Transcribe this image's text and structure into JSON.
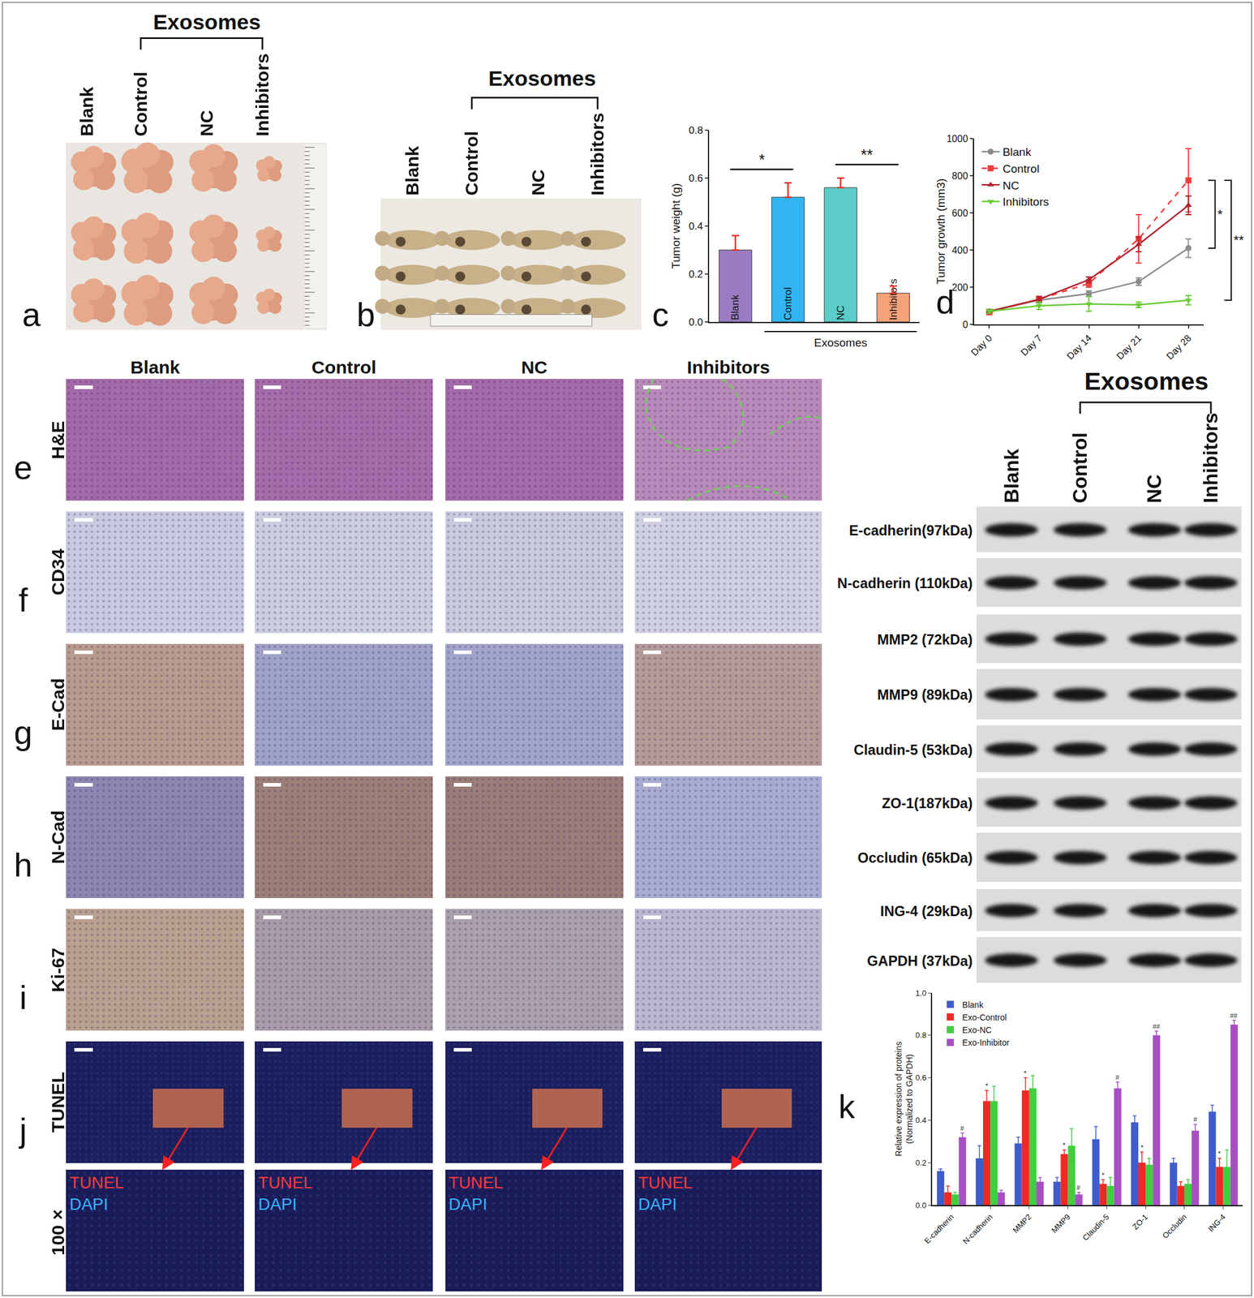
{
  "chart_data": [
    {
      "panel": "c",
      "type": "bar",
      "categories": [
        "Blank",
        "Control",
        "NC",
        "Inhibitors"
      ],
      "values": [
        0.3,
        0.52,
        0.56,
        0.12
      ],
      "errors": [
        0.06,
        0.06,
        0.04,
        0.03
      ],
      "colors": [
        "#9b7cc4",
        "#33b5f2",
        "#5ccdc9",
        "#f5a27a"
      ],
      "y_label": "Tumor weight (g)",
      "ylim": [
        0,
        0.8
      ],
      "yticks": [
        {
          "value": 0,
          "label": "0.0"
        },
        0.2,
        0.4,
        0.6,
        0.8
      ],
      "tick_labels": "y",
      "group": {
        "label": "Exosomes",
        "from": "Control",
        "to": "Inhibitors"
      },
      "significance": [
        {
          "from": "Blank",
          "to": "Control",
          "text": "*"
        },
        {
          "from": "NC",
          "to": "Inhibitors",
          "text": "**"
        }
      ]
    },
    {
      "panel": "d",
      "type": "line",
      "categories": [
        "Day 0",
        "Day 7",
        "Day 14",
        "Day 21",
        "Day 28"
      ],
      "series": [
        {
          "name": "Blank",
          "color": "#8c8c8c",
          "marker": "circle",
          "line_style": "solid",
          "values": [
            70,
            130,
            165,
            230,
            410
          ],
          "errors": [
            10,
            15,
            15,
            20,
            50
          ]
        },
        {
          "name": "Control",
          "color": "#f03c3c",
          "marker": "square",
          "line_style": "dashed",
          "values": [
            65,
            135,
            220,
            460,
            775
          ],
          "errors": [
            10,
            15,
            20,
            130,
            170
          ]
        },
        {
          "name": "NC",
          "color": "#b5202a",
          "marker": "triangle-up",
          "line_style": "solid",
          "values": [
            70,
            135,
            240,
            430,
            640
          ],
          "errors": [
            10,
            15,
            15,
            40,
            50
          ]
        },
        {
          "name": "Inhibitors",
          "color": "#66cc33",
          "marker": "triangle-down",
          "line_style": "solid",
          "values": [
            70,
            100,
            110,
            105,
            130
          ],
          "errors": [
            10,
            20,
            40,
            15,
            25
          ]
        }
      ],
      "y_label": "Tumor growth (mm3)",
      "ylim": [
        0,
        1000
      ],
      "yticks": [
        0,
        200,
        400,
        600,
        800,
        1000
      ],
      "legend": "top-left",
      "significance": [
        {
          "from": "Control",
          "to": "Blank",
          "text": "*"
        },
        {
          "from": "Control",
          "to": "Inhibitors",
          "text": "**"
        }
      ]
    },
    {
      "panel": "k",
      "type": "bar",
      "categories": [
        "E-cadherin",
        "N-cadherin",
        "MMP2",
        "MMP9",
        "Claudin-5",
        "ZO-1",
        "Occludin",
        "ING-4"
      ],
      "series": [
        {
          "name": "Blank",
          "color": "#3f5ccc",
          "values": [
            0.16,
            0.22,
            0.29,
            0.11,
            0.31,
            0.39,
            0.2,
            0.44
          ],
          "errors": [
            0.01,
            0.06,
            0.03,
            0.02,
            0.06,
            0.03,
            0.02,
            0.03
          ]
        },
        {
          "name": "Exo-Control",
          "color": "#ee2a24",
          "values": [
            0.06,
            0.49,
            0.54,
            0.24,
            0.1,
            0.2,
            0.09,
            0.18
          ],
          "errors": [
            0.03,
            0.05,
            0.06,
            0.02,
            0.02,
            0.05,
            0.02,
            0.04
          ]
        },
        {
          "name": "Exo-NC",
          "color": "#3fcf3f",
          "values": [
            0.05,
            0.49,
            0.55,
            0.28,
            0.09,
            0.19,
            0.1,
            0.18
          ],
          "errors": [
            0.01,
            0.07,
            0.06,
            0.08,
            0.04,
            0.03,
            0.02,
            0.08
          ]
        },
        {
          "name": "Exo-Inhibitor",
          "color": "#a84fc4",
          "values": [
            0.32,
            0.06,
            0.11,
            0.05,
            0.55,
            0.8,
            0.35,
            0.85
          ],
          "errors": [
            0.02,
            0.01,
            0.02,
            0.01,
            0.03,
            0.02,
            0.03,
            0.02
          ]
        }
      ],
      "y_label": "Relative expression of proteins\n(Normalized to GAPDH)",
      "ylim": [
        0,
        1.0
      ],
      "yticks": [
        {
          "value": 0,
          "label": "0.0"
        },
        0.2,
        0.4,
        0.6,
        0.8,
        {
          "value": 1,
          "label": "1.0"
        }
      ],
      "legend": "top-left",
      "marks": [
        {
          "category": "E-cadherin",
          "series": "Exo-Inhibitor",
          "text": "#"
        },
        {
          "category": "N-cadherin",
          "series": "Exo-Control",
          "text": "*"
        },
        {
          "category": "MMP2",
          "series": "Exo-Control",
          "text": "*"
        },
        {
          "category": "MMP9",
          "series": "Exo-Control",
          "text": "*"
        },
        {
          "category": "MMP9",
          "series": "Exo-Inhibitor",
          "text": "#"
        },
        {
          "category": "Claudin-5",
          "series": "Exo-Control",
          "text": "*"
        },
        {
          "category": "Claudin-5",
          "series": "Exo-Inhibitor",
          "text": "#"
        },
        {
          "category": "ZO-1",
          "series": "Exo-Control",
          "text": "*"
        },
        {
          "category": "ZO-1",
          "series": "Exo-Inhibitor",
          "text": "##"
        },
        {
          "category": "Occludin",
          "series": "Exo-Inhibitor",
          "text": "#"
        },
        {
          "category": "ING-4",
          "series": "Exo-Control",
          "text": "*"
        },
        {
          "category": "ING-4",
          "series": "Exo-Inhibitor",
          "text": "##"
        }
      ]
    }
  ],
  "figure": {
    "a": {
      "letter": "a",
      "header": "Exosomes",
      "labels": [
        "Blank",
        "Control",
        "NC",
        "Inhibitors"
      ],
      "group_from": "Control",
      "group_to": "Inhibitors"
    },
    "b": {
      "letter": "b",
      "header": "Exosomes",
      "labels": [
        "Blank",
        "Control",
        "NC",
        "Inhibitors"
      ],
      "group_from": "Control",
      "group_to": "Inhibitors"
    },
    "sections": {
      "columns": [
        "Blank",
        "Control",
        "NC",
        "Inhibitors"
      ],
      "rows": [
        {
          "letter": "e",
          "label": "H&E"
        },
        {
          "letter": "f",
          "label": "CD34"
        },
        {
          "letter": "g",
          "label": "E-Cad"
        },
        {
          "letter": "h",
          "label": "N-Cad"
        },
        {
          "letter": "i",
          "label": "Ki-67"
        },
        {
          "letter": "j",
          "label": "TUNEL"
        }
      ],
      "zoom_label": "100×",
      "channels": [
        "TUNEL",
        "DAPI"
      ]
    },
    "blot": {
      "header": "Exosomes",
      "lanes": [
        "Blank",
        "Control",
        "NC",
        "Inhibitors"
      ],
      "group_from": "Control",
      "group_to": "Inhibitors",
      "proteins": [
        "E-cadherin(97kDa)",
        "N-cadherin (110kDa)",
        "MMP2 (72kDa)",
        "MMP9 (89kDa)",
        "Claudin-5 (53kDa)",
        "ZO-1(187kDa)",
        "Occludin (65kDa)",
        "ING-4 (29kDa)",
        "GAPDH (37kDa)"
      ]
    }
  }
}
